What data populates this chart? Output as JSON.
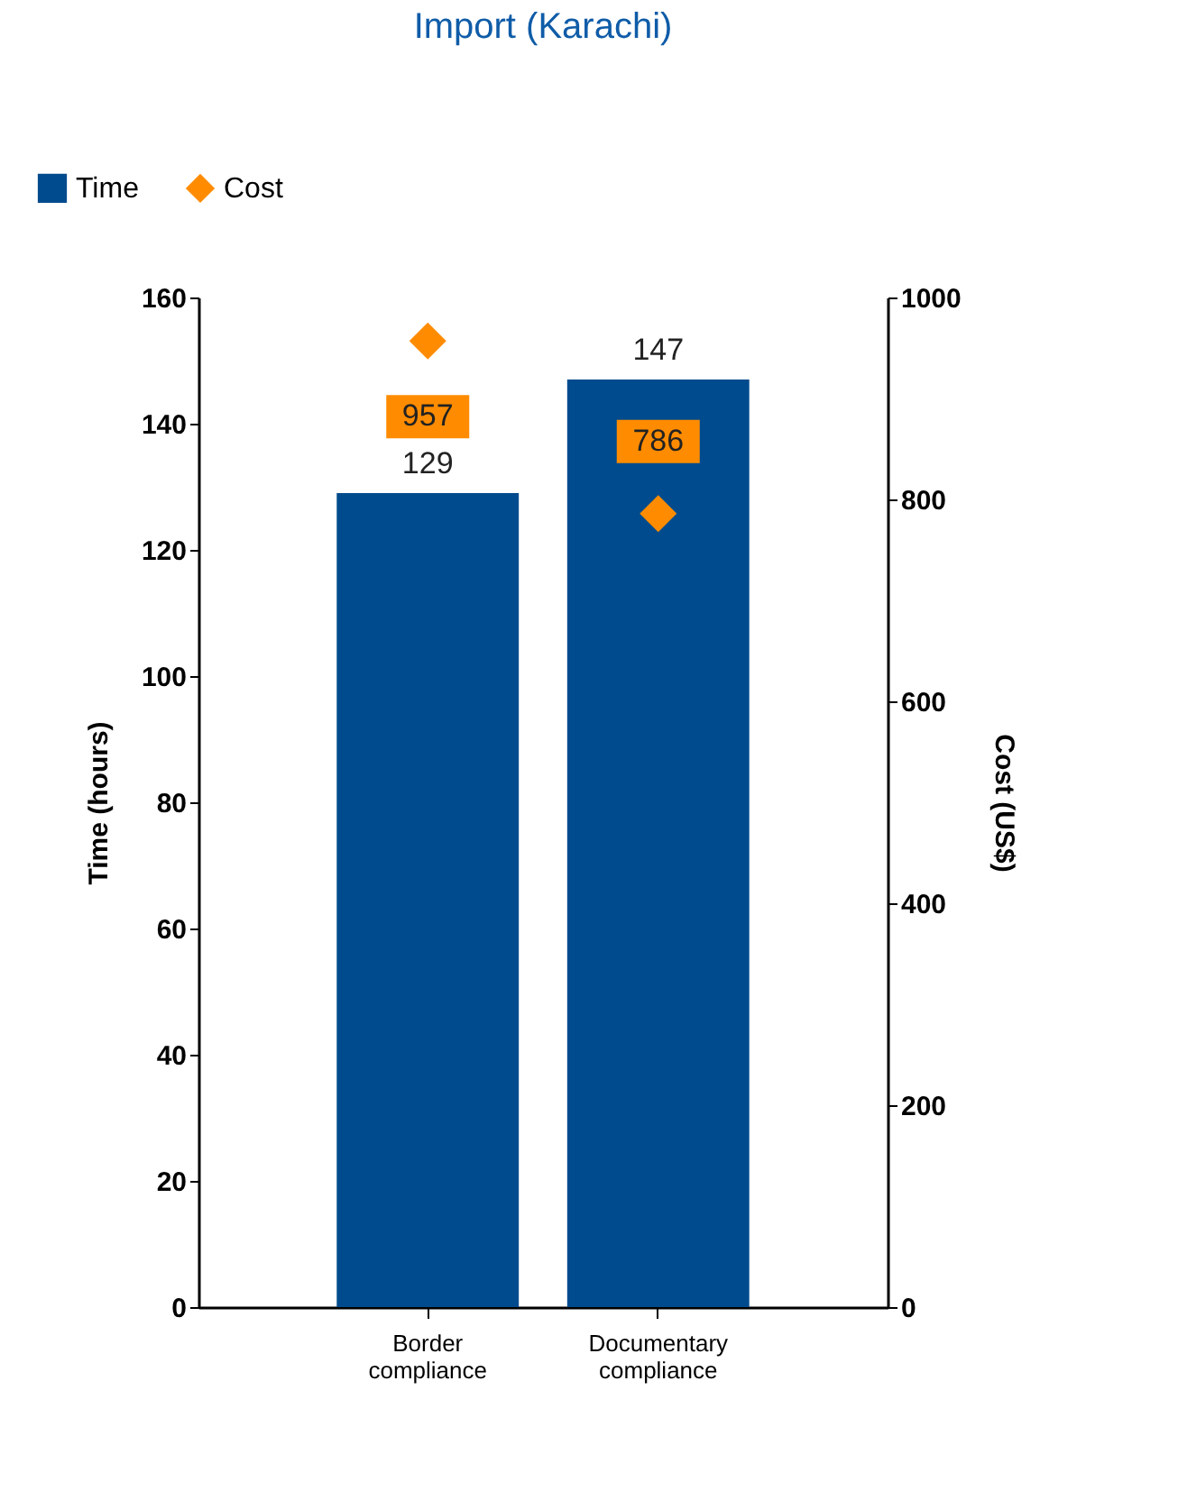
{
  "chart_data": {
    "type": "bar",
    "title": "Import (Karachi)",
    "categories": [
      "Border compliance",
      "Documentary compliance"
    ],
    "series": [
      {
        "name": "Time",
        "type": "bar",
        "color": "#004b8d",
        "values": [
          129,
          147
        ],
        "value_labels": [
          "129",
          "147"
        ]
      },
      {
        "name": "Cost",
        "type": "scatter",
        "axis": "y2",
        "marker": "diamond",
        "color": "#ff8c00",
        "values": [
          957,
          786
        ],
        "value_labels": [
          "957",
          "786"
        ]
      }
    ],
    "ylabel": "Time (hours)",
    "y2label": "Cost (US$)",
    "ylim": [
      0,
      160
    ],
    "yticks": [
      0,
      20,
      40,
      60,
      80,
      100,
      120,
      140,
      160
    ],
    "y2lim": [
      0,
      1000
    ],
    "y2ticks": [
      0,
      200,
      400,
      600,
      800,
      1000
    ],
    "legend": "top left",
    "grid": false
  }
}
